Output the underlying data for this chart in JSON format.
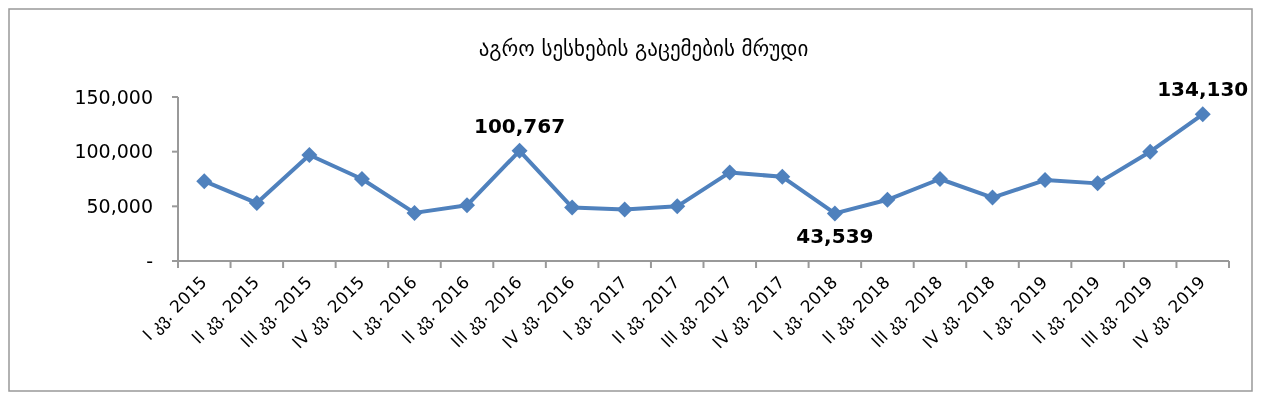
{
  "chart_data": {
    "type": "line",
    "title": "აგრო სესხების გაცემების მრუდი",
    "categories": [
      "I კვ. 2015",
      "II კვ. 2015",
      "III კვ. 2015",
      "IV კვ. 2015",
      "I კვ. 2016",
      "II კვ. 2016",
      "III კვ. 2016",
      "IV კვ. 2016",
      "I კვ. 2017",
      "II კვ. 2017",
      "III კვ. 2017",
      "IV კვ. 2017",
      "I კვ. 2018",
      "II კვ. 2018",
      "III კვ. 2018",
      "IV კვ. 2018",
      "I კვ. 2019",
      "II კვ. 2019",
      "III კვ. 2019",
      "IV კვ. 2019"
    ],
    "series": [
      {
        "color": "#4f81bd",
        "values": [
          73000,
          53000,
          97000,
          75000,
          44000,
          51000,
          100767,
          49000,
          47000,
          50000,
          81000,
          77000,
          43539,
          56000,
          75000,
          58000,
          74000,
          71000,
          100000,
          134130
        ],
        "value_labels": [
          null,
          null,
          null,
          null,
          null,
          null,
          "100,767",
          null,
          null,
          null,
          null,
          null,
          "43,539",
          null,
          null,
          null,
          null,
          null,
          null,
          "134,130"
        ]
      }
    ],
    "ylim": [
      0,
      150000
    ],
    "yticks": [
      {
        "value": 0,
        "label": "-"
      },
      {
        "value": 50000,
        "label": "50,000"
      },
      {
        "value": 100000,
        "label": "100,000"
      },
      {
        "value": 150000,
        "label": "150,000"
      }
    ],
    "marker": "diamond",
    "grid": false
  }
}
